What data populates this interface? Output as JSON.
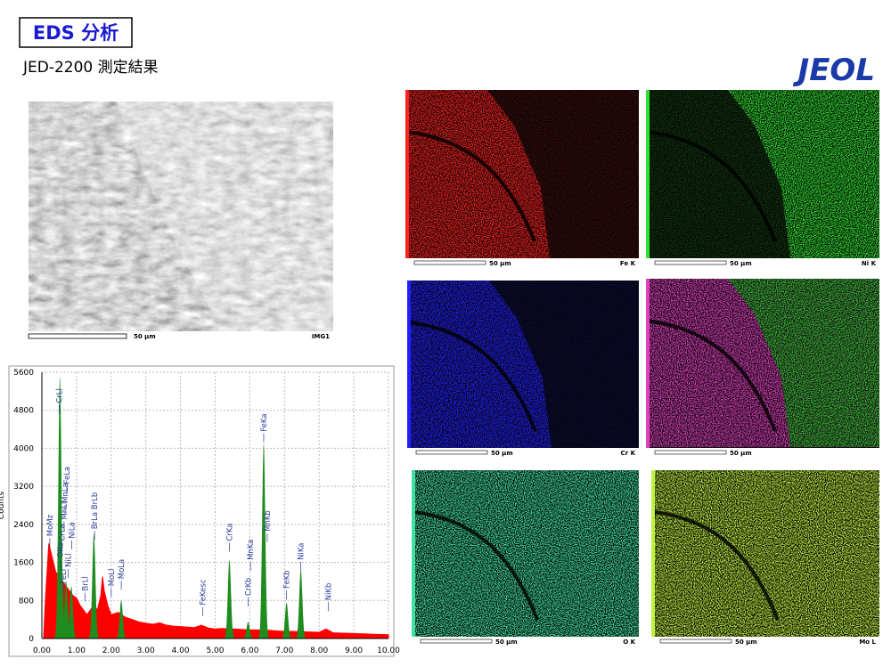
{
  "header": {
    "badge": "EDS 分析",
    "subtitle": "JED-2200 測定結果",
    "logo": "JEOL"
  },
  "sem_image": {
    "scale": "50 µm",
    "label": "IMG1"
  },
  "maps": [
    {
      "scale": "50 µm",
      "label": "Fe K",
      "color": "#ff2020"
    },
    {
      "scale": "50 µm",
      "label": "Ni K",
      "color": "#30e030"
    },
    {
      "scale": "50 µm",
      "label": "Cr K",
      "color": "#2020ff"
    },
    {
      "scale": "50 µm",
      "color": "#e040c0"
    },
    {
      "scale": "50 µm",
      "label": "O K",
      "color": "#40e0a0"
    },
    {
      "scale": "50 µm",
      "label": "Mo L",
      "color": "#c0f040"
    }
  ],
  "chart_data": {
    "type": "area",
    "y_label": "Counts",
    "color": "#ff0000",
    "peak_color": "#1e8c1e",
    "x": [
      0.05,
      0.1,
      0.2,
      0.3,
      0.4,
      0.5,
      0.6,
      0.7,
      0.8,
      0.9,
      1.0,
      1.1,
      1.2,
      1.3,
      1.4,
      1.5,
      1.6,
      1.7,
      1.75,
      1.8,
      1.9,
      2.0,
      2.2,
      2.4,
      2.6,
      2.8,
      3.0,
      3.2,
      3.4,
      3.6,
      3.8,
      4.0,
      4.4,
      4.6,
      4.8,
      5.0,
      5.2,
      5.4,
      5.6,
      5.8,
      6.0,
      6.2,
      6.6,
      6.8,
      7.0,
      7.2,
      7.6,
      8.0,
      8.2,
      8.4,
      8.8,
      9.2,
      9.6,
      10.0
    ],
    "counts": [
      0,
      800,
      2000,
      1700,
      1400,
      1300,
      1200,
      1100,
      1000,
      900,
      850,
      700,
      600,
      500,
      600,
      700,
      600,
      900,
      1300,
      1000,
      700,
      500,
      550,
      450,
      400,
      350,
      320,
      300,
      330,
      280,
      260,
      250,
      230,
      280,
      220,
      200,
      210,
      200,
      200,
      190,
      180,
      180,
      170,
      160,
      150,
      150,
      140,
      130,
      200,
      120,
      110,
      100,
      90,
      80
    ],
    "peaks": {
      "x": [
        0.52,
        0.57,
        0.7,
        0.85,
        1.5,
        2.29,
        5.41,
        5.95,
        6.4,
        7.06,
        7.47
      ],
      "counts": [
        5500,
        1500,
        1200,
        1100,
        2200,
        800,
        1650,
        350,
        4100,
        750,
        1450
      ]
    },
    "annotations": [
      {
        "text": "MoMz",
        "x": 0.23,
        "y": 2150
      },
      {
        "text": "CrLl",
        "x": 0.5,
        "y": 4950
      },
      {
        "text": "OKa",
        "x": 0.53,
        "y": 1700
      },
      {
        "text": "CrLa",
        "x": 0.58,
        "y": 2050
      },
      {
        "text": "FeLl",
        "x": 0.62,
        "y": 1150
      },
      {
        "text": "MnLl",
        "x": 0.64,
        "y": 2500
      },
      {
        "text": "MnLa",
        "x": 0.67,
        "y": 2850
      },
      {
        "text": "FeLa",
        "x": 0.72,
        "y": 3250
      },
      {
        "text": "NiLl",
        "x": 0.76,
        "y": 1500
      },
      {
        "text": "NiLa",
        "x": 0.86,
        "y": 2100
      },
      {
        "text": "BrLl",
        "x": 1.25,
        "y": 1000
      },
      {
        "text": "BrLa BrLb",
        "x": 1.52,
        "y": 2300
      },
      {
        "text": "MoLl",
        "x": 2.0,
        "y": 1100
      },
      {
        "text": "MoLa",
        "x": 2.29,
        "y": 1250
      },
      {
        "text": "FeKesc",
        "x": 4.64,
        "y": 700
      },
      {
        "text": "CrKa",
        "x": 5.41,
        "y": 2050
      },
      {
        "text": "CrKb",
        "x": 5.95,
        "y": 900
      },
      {
        "text": "MnKa",
        "x": 6.02,
        "y": 1650
      },
      {
        "text": "FeKa",
        "x": 6.4,
        "y": 4350
      },
      {
        "text": "MnKb",
        "x": 6.5,
        "y": 2250
      },
      {
        "text": "FeKb",
        "x": 7.06,
        "y": 1050
      },
      {
        "text": "NiKa",
        "x": 7.47,
        "y": 1650
      },
      {
        "text": "NiKb",
        "x": 8.26,
        "y": 800
      }
    ],
    "xlim": [
      0,
      10
    ],
    "ylim": [
      0,
      5600
    ],
    "xticks": [
      {
        "value": 0,
        "label": "0.00"
      },
      {
        "value": 1,
        "label": "1.00"
      },
      {
        "value": 2,
        "label": "2.00"
      },
      {
        "value": 3,
        "label": "3.00"
      },
      {
        "value": 4,
        "label": "4.00"
      },
      {
        "value": 5,
        "label": "5.00"
      },
      {
        "value": 6,
        "label": "6.00"
      },
      {
        "value": 7,
        "label": "7.00"
      },
      {
        "value": 8,
        "label": "8.00"
      },
      {
        "value": 9,
        "label": "9.00"
      },
      {
        "value": 10,
        "label": "10.00"
      }
    ],
    "yticks": [
      0,
      800,
      1600,
      2400,
      3200,
      4000,
      4800,
      5600
    ],
    "grid": true
  }
}
